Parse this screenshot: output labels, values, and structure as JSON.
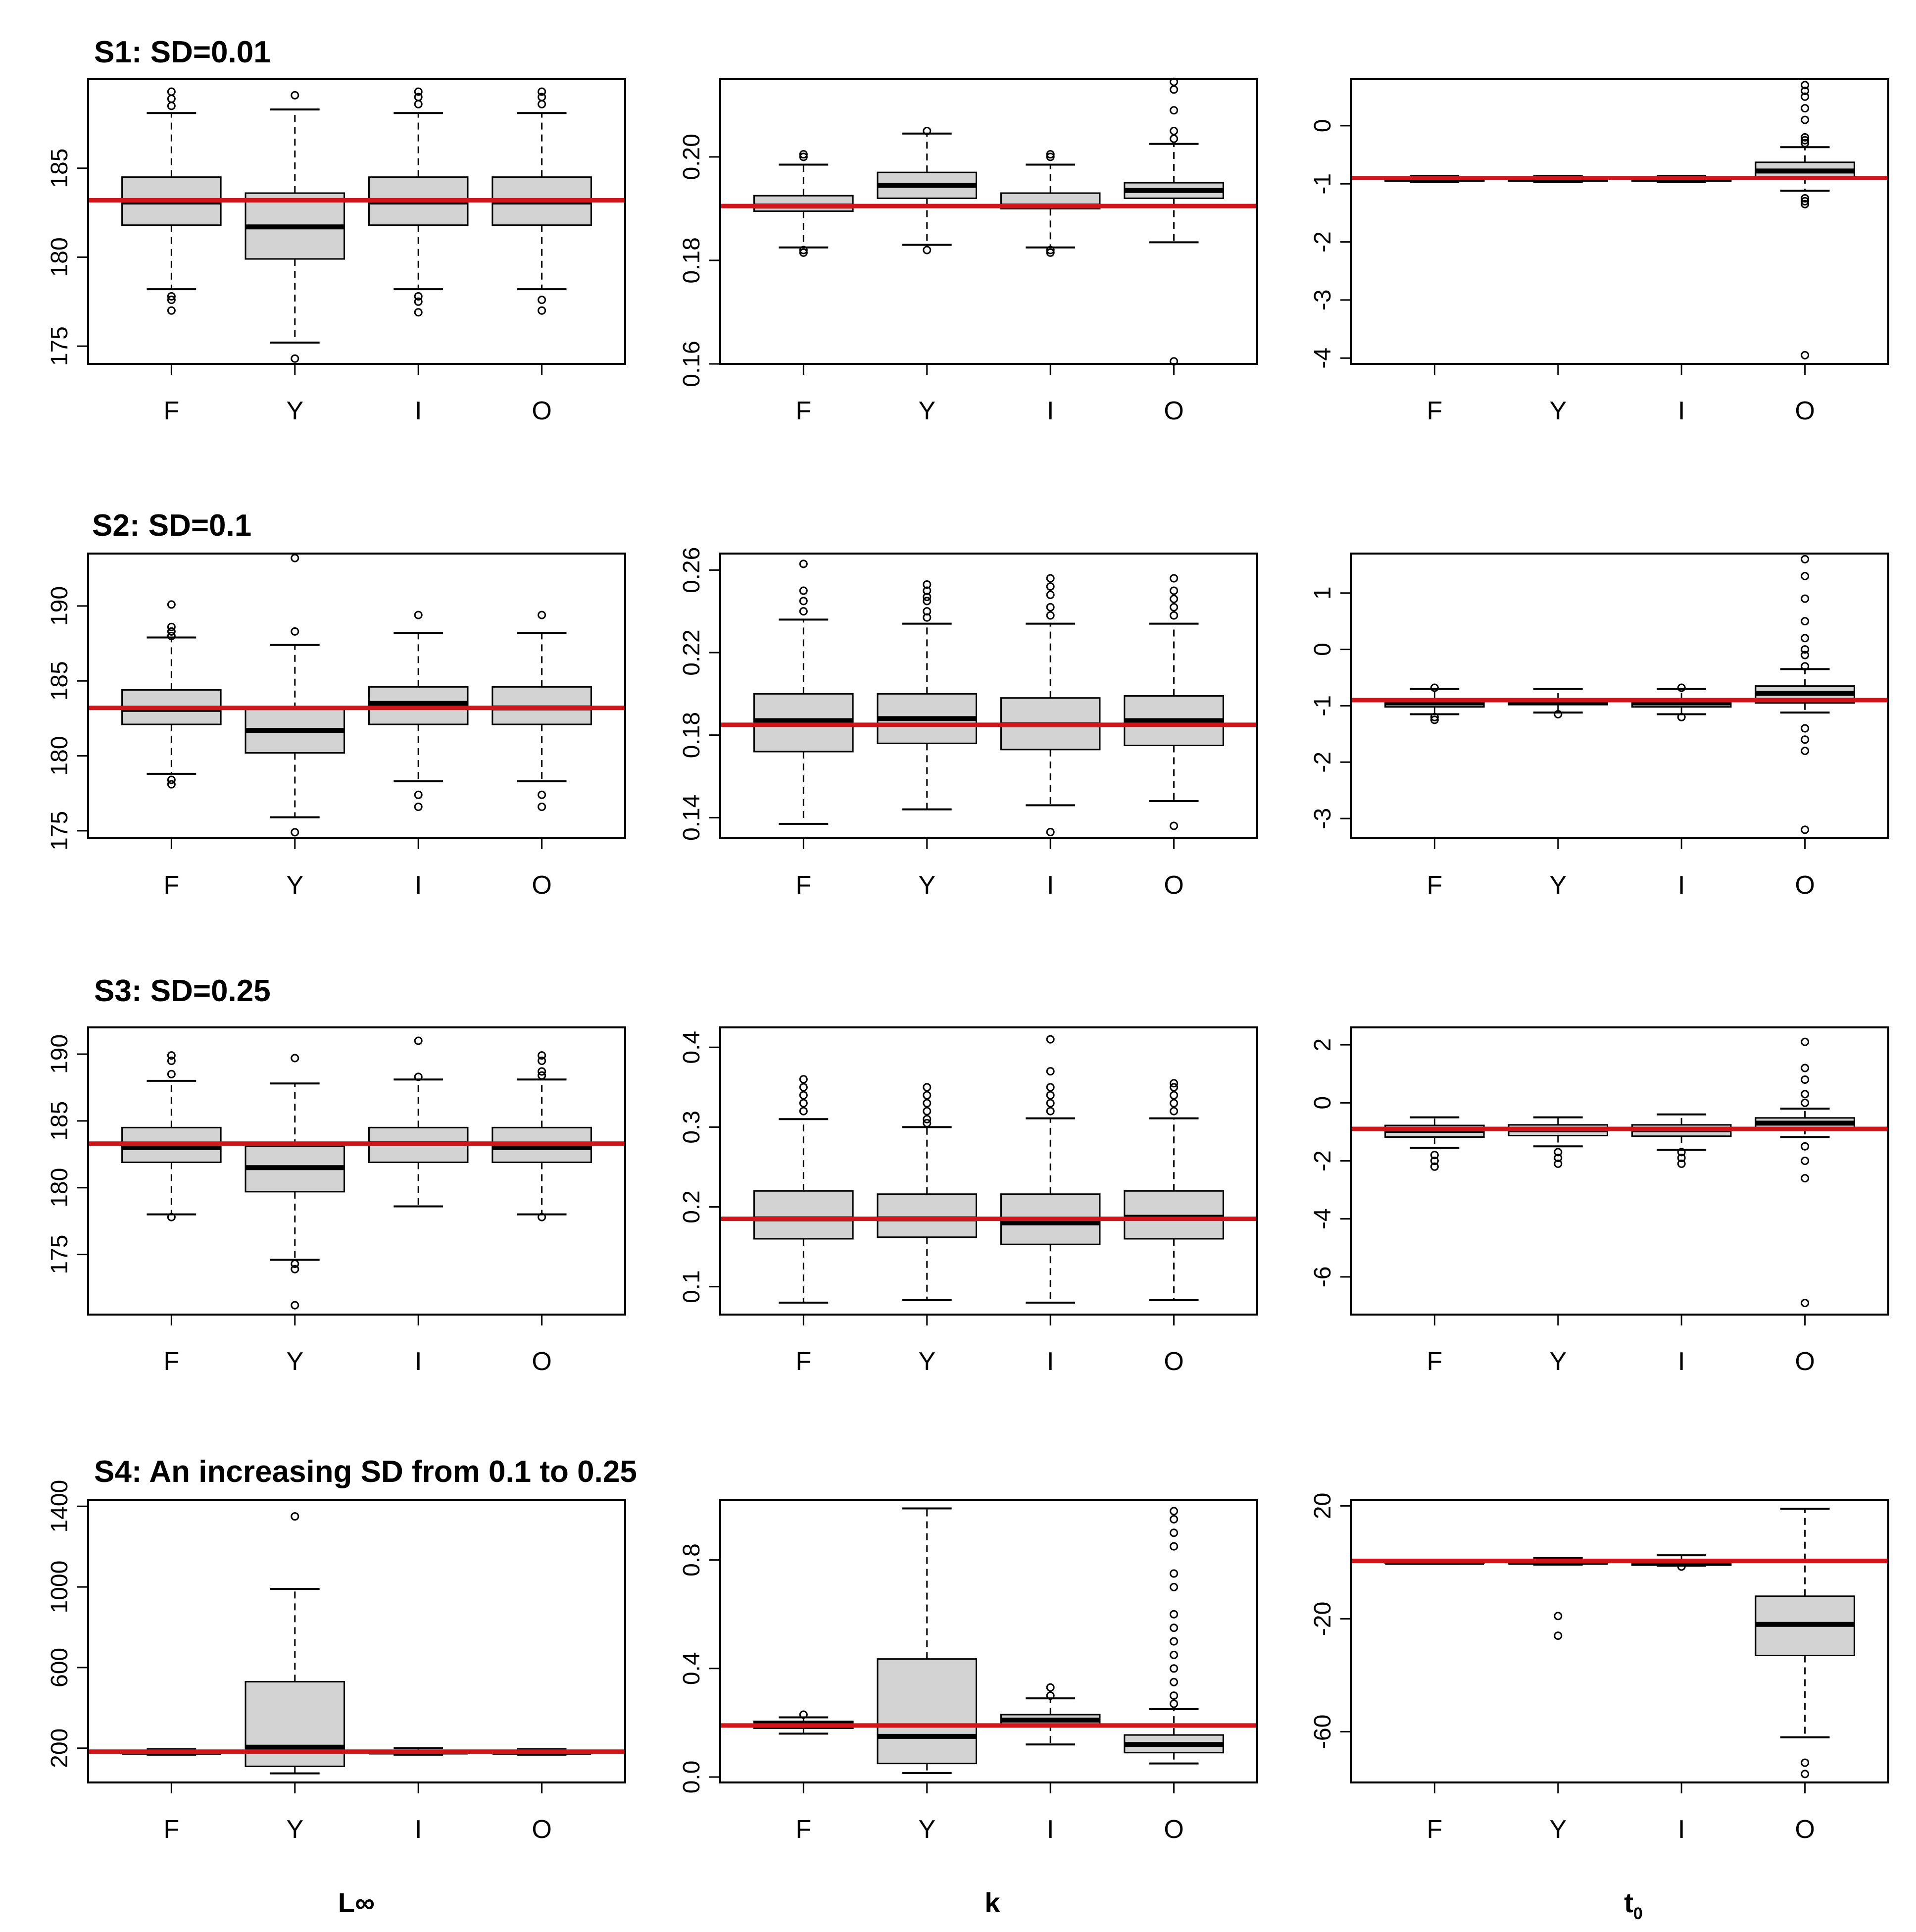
{
  "figure": {
    "x_labels": [
      "L∞",
      "k",
      "t0"
    ],
    "x_label_parts": [
      {
        "main": "L∞",
        "sub": ""
      },
      {
        "main": "k",
        "sub": ""
      },
      {
        "main": "t",
        "sub": "0"
      }
    ],
    "reference_line_color": "#d0161b",
    "box_fill": "#d3d3d3"
  },
  "chart_data": [
    {
      "type": "boxplot",
      "scenario": "S1",
      "title": "S1: SD=0.01",
      "parameter": "L∞",
      "categories": [
        "F",
        "Y",
        "I",
        "O"
      ],
      "ylim": [
        174,
        190
      ],
      "yticks": [
        175,
        180,
        185
      ],
      "reference_value": 183.2,
      "boxes": [
        {
          "q1": 181.8,
          "median": 183.1,
          "q3": 184.5,
          "lower": 178.2,
          "upper": 188.1,
          "outliers": [
            177.0,
            177.6,
            177.8,
            188.5,
            188.9,
            189.3
          ]
        },
        {
          "q1": 179.9,
          "median": 181.7,
          "q3": 183.6,
          "lower": 175.2,
          "upper": 188.3,
          "outliers": [
            174.3,
            189.1
          ]
        },
        {
          "q1": 181.8,
          "median": 183.1,
          "q3": 184.5,
          "lower": 178.2,
          "upper": 188.1,
          "outliers": [
            176.9,
            177.5,
            177.8,
            188.6,
            189.0,
            189.3
          ]
        },
        {
          "q1": 181.8,
          "median": 183.1,
          "q3": 184.5,
          "lower": 178.2,
          "upper": 188.1,
          "outliers": [
            177.0,
            177.6,
            188.6,
            189.0,
            189.3
          ]
        }
      ]
    },
    {
      "type": "boxplot",
      "scenario": "S1",
      "title": "",
      "parameter": "k",
      "categories": [
        "F",
        "Y",
        "I",
        "O"
      ],
      "ylim": [
        0.16,
        0.215
      ],
      "yticks": [
        0.16,
        0.18,
        0.2
      ],
      "reference_value": 0.1905,
      "boxes": [
        {
          "q1": 0.1895,
          "median": 0.1905,
          "q3": 0.1925,
          "lower": 0.1825,
          "upper": 0.1985,
          "outliers": [
            0.1815,
            0.182,
            0.2,
            0.2005
          ]
        },
        {
          "q1": 0.192,
          "median": 0.1945,
          "q3": 0.197,
          "lower": 0.183,
          "upper": 0.2045,
          "outliers": [
            0.182,
            0.205
          ]
        },
        {
          "q1": 0.19,
          "median": 0.1905,
          "q3": 0.193,
          "lower": 0.1825,
          "upper": 0.1985,
          "outliers": [
            0.1815,
            0.182,
            0.2,
            0.2005
          ]
        },
        {
          "q1": 0.192,
          "median": 0.1935,
          "q3": 0.195,
          "lower": 0.1835,
          "upper": 0.2025,
          "outliers": [
            0.1605,
            0.2035,
            0.205,
            0.209,
            0.213,
            0.2145
          ]
        }
      ]
    },
    {
      "type": "boxplot",
      "scenario": "S1",
      "title": "",
      "parameter": "t0",
      "categories": [
        "F",
        "Y",
        "I",
        "O"
      ],
      "ylim": [
        -4.1,
        0.8
      ],
      "yticks": [
        -4,
        -3,
        -2,
        -1,
        0
      ],
      "reference_value": -0.9,
      "boxes": [
        {
          "q1": -0.95,
          "median": -0.92,
          "q3": -0.89,
          "lower": -0.97,
          "upper": -0.87,
          "outliers": []
        },
        {
          "q1": -0.95,
          "median": -0.92,
          "q3": -0.89,
          "lower": -0.97,
          "upper": -0.87,
          "outliers": []
        },
        {
          "q1": -0.95,
          "median": -0.92,
          "q3": -0.89,
          "lower": -0.97,
          "upper": -0.87,
          "outliers": []
        },
        {
          "q1": -0.88,
          "median": -0.78,
          "q3": -0.63,
          "lower": -1.12,
          "upper": -0.37,
          "outliers": [
            -3.95,
            -1.35,
            -1.3,
            -1.25,
            -0.3,
            -0.25,
            -0.2,
            0.1,
            0.3,
            0.5,
            0.6,
            0.7
          ]
        }
      ]
    },
    {
      "type": "boxplot",
      "scenario": "S2",
      "title": "S2: SD=0.1",
      "parameter": "L∞",
      "categories": [
        "F",
        "Y",
        "I",
        "O"
      ],
      "ylim": [
        174.5,
        193.5
      ],
      "yticks": [
        175,
        180,
        185,
        190
      ],
      "reference_value": 183.2,
      "boxes": [
        {
          "q1": 182.1,
          "median": 183.1,
          "q3": 184.4,
          "lower": 178.8,
          "upper": 187.9,
          "outliers": [
            178.1,
            178.4,
            188.0,
            188.3,
            188.6,
            190.1
          ]
        },
        {
          "q1": 180.2,
          "median": 181.7,
          "q3": 183.1,
          "lower": 175.9,
          "upper": 187.4,
          "outliers": [
            174.9,
            188.3,
            193.2
          ]
        },
        {
          "q1": 182.1,
          "median": 183.5,
          "q3": 184.6,
          "lower": 178.3,
          "upper": 188.2,
          "outliers": [
            176.6,
            177.4,
            189.4
          ]
        },
        {
          "q1": 182.1,
          "median": 183.2,
          "q3": 184.6,
          "lower": 178.3,
          "upper": 188.2,
          "outliers": [
            176.6,
            177.4,
            189.4
          ]
        }
      ]
    },
    {
      "type": "boxplot",
      "scenario": "S2",
      "title": "",
      "parameter": "k",
      "categories": [
        "F",
        "Y",
        "I",
        "O"
      ],
      "ylim": [
        0.13,
        0.268
      ],
      "yticks": [
        0.14,
        0.18,
        0.22,
        0.26
      ],
      "reference_value": 0.185,
      "boxes": [
        {
          "q1": 0.172,
          "median": 0.187,
          "q3": 0.2,
          "lower": 0.137,
          "upper": 0.236,
          "outliers": [
            0.24,
            0.245,
            0.25,
            0.263
          ]
        },
        {
          "q1": 0.176,
          "median": 0.188,
          "q3": 0.2,
          "lower": 0.144,
          "upper": 0.234,
          "outliers": [
            0.237,
            0.24,
            0.245,
            0.247,
            0.25,
            0.253
          ]
        },
        {
          "q1": 0.173,
          "median": 0.185,
          "q3": 0.198,
          "lower": 0.146,
          "upper": 0.234,
          "outliers": [
            0.133,
            0.238,
            0.242,
            0.248,
            0.252,
            0.256
          ]
        },
        {
          "q1": 0.175,
          "median": 0.187,
          "q3": 0.199,
          "lower": 0.148,
          "upper": 0.234,
          "outliers": [
            0.136,
            0.238,
            0.242,
            0.246,
            0.25,
            0.256
          ]
        }
      ]
    },
    {
      "type": "boxplot",
      "scenario": "S2",
      "title": "",
      "parameter": "t0",
      "categories": [
        "F",
        "Y",
        "I",
        "O"
      ],
      "ylim": [
        -3.35,
        1.7
      ],
      "yticks": [
        -3,
        -2,
        -1,
        0,
        1
      ],
      "reference_value": -0.9,
      "boxes": [
        {
          "q1": -1.02,
          "median": -0.95,
          "q3": -0.88,
          "lower": -1.15,
          "upper": -0.7,
          "outliers": [
            -1.2,
            -1.25,
            -0.68
          ]
        },
        {
          "q1": -0.98,
          "median": -0.94,
          "q3": -0.9,
          "lower": -1.12,
          "upper": -0.7,
          "outliers": [
            -1.15
          ]
        },
        {
          "q1": -1.02,
          "median": -0.95,
          "q3": -0.89,
          "lower": -1.15,
          "upper": -0.7,
          "outliers": [
            -1.2,
            -0.68
          ]
        },
        {
          "q1": -0.95,
          "median": -0.78,
          "q3": -0.65,
          "lower": -1.12,
          "upper": -0.35,
          "outliers": [
            -3.2,
            -1.8,
            -1.6,
            -1.4,
            -0.3,
            -0.1,
            0.0,
            0.2,
            0.5,
            0.9,
            1.3,
            1.6
          ]
        }
      ]
    },
    {
      "type": "boxplot",
      "scenario": "S3",
      "title": "S3: SD=0.25",
      "parameter": "L∞",
      "categories": [
        "F",
        "Y",
        "I",
        "O"
      ],
      "ylim": [
        170.5,
        192
      ],
      "yticks": [
        175,
        180,
        185,
        190
      ],
      "reference_value": 183.3,
      "boxes": [
        {
          "q1": 181.9,
          "median": 183.0,
          "q3": 184.5,
          "lower": 178.0,
          "upper": 188.0,
          "outliers": [
            177.8,
            188.5,
            189.5,
            189.9
          ]
        },
        {
          "q1": 179.7,
          "median": 181.5,
          "q3": 183.1,
          "lower": 174.6,
          "upper": 187.8,
          "outliers": [
            171.2,
            173.9,
            174.3,
            189.7
          ]
        },
        {
          "q1": 181.9,
          "median": 183.3,
          "q3": 184.5,
          "lower": 178.6,
          "upper": 188.1,
          "outliers": [
            188.3,
            191.0
          ]
        },
        {
          "q1": 181.9,
          "median": 183.0,
          "q3": 184.5,
          "lower": 178.0,
          "upper": 188.1,
          "outliers": [
            177.8,
            188.4,
            188.7,
            189.5,
            189.9
          ]
        }
      ]
    },
    {
      "type": "boxplot",
      "scenario": "S3",
      "title": "",
      "parameter": "k",
      "categories": [
        "F",
        "Y",
        "I",
        "O"
      ],
      "ylim": [
        0.065,
        0.425
      ],
      "yticks": [
        0.1,
        0.2,
        0.3,
        0.4
      ],
      "reference_value": 0.185,
      "boxes": [
        {
          "q1": 0.16,
          "median": 0.185,
          "q3": 0.22,
          "lower": 0.08,
          "upper": 0.31,
          "outliers": [
            0.32,
            0.33,
            0.34,
            0.35,
            0.36
          ]
        },
        {
          "q1": 0.162,
          "median": 0.185,
          "q3": 0.216,
          "lower": 0.083,
          "upper": 0.3,
          "outliers": [
            0.305,
            0.31,
            0.32,
            0.33,
            0.34,
            0.35
          ]
        },
        {
          "q1": 0.153,
          "median": 0.18,
          "q3": 0.216,
          "lower": 0.08,
          "upper": 0.311,
          "outliers": [
            0.32,
            0.33,
            0.34,
            0.35,
            0.37,
            0.41
          ]
        },
        {
          "q1": 0.16,
          "median": 0.187,
          "q3": 0.22,
          "lower": 0.083,
          "upper": 0.311,
          "outliers": [
            0.32,
            0.33,
            0.34,
            0.35,
            0.355
          ]
        }
      ]
    },
    {
      "type": "boxplot",
      "scenario": "S3",
      "title": "",
      "parameter": "t0",
      "categories": [
        "F",
        "Y",
        "I",
        "O"
      ],
      "ylim": [
        -7.3,
        2.6
      ],
      "yticks": [
        -6,
        -4,
        -2,
        0,
        2
      ],
      "reference_value": -0.9,
      "boxes": [
        {
          "q1": -1.18,
          "median": -0.95,
          "q3": -0.78,
          "lower": -1.55,
          "upper": -0.5,
          "outliers": [
            -2.2,
            -2.0,
            -1.8
          ]
        },
        {
          "q1": -1.13,
          "median": -0.93,
          "q3": -0.76,
          "lower": -1.5,
          "upper": -0.5,
          "outliers": [
            -2.1,
            -1.9,
            -1.7
          ]
        },
        {
          "q1": -1.15,
          "median": -0.93,
          "q3": -0.76,
          "lower": -1.62,
          "upper": -0.4,
          "outliers": [
            -2.1,
            -1.9,
            -1.7
          ]
        },
        {
          "q1": -0.85,
          "median": -0.7,
          "q3": -0.52,
          "lower": -1.18,
          "upper": -0.2,
          "outliers": [
            -6.9,
            -2.6,
            -2.0,
            -1.5,
            0.0,
            0.3,
            0.8,
            1.2,
            2.1
          ]
        }
      ]
    },
    {
      "type": "boxplot",
      "scenario": "S4",
      "title": "S4: An increasing SD from 0.1 to 0.25",
      "parameter": "L∞",
      "categories": [
        "F",
        "Y",
        "I",
        "O"
      ],
      "ylim": [
        30,
        1430
      ],
      "yticks": [
        200,
        600,
        1000,
        1400
      ],
      "reference_value": 183,
      "boxes": [
        {
          "q1": 174,
          "median": 180,
          "q3": 187,
          "lower": 168,
          "upper": 195,
          "outliers": []
        },
        {
          "q1": 110,
          "median": 205,
          "q3": 530,
          "lower": 75,
          "upper": 990,
          "outliers": [
            1350
          ]
        },
        {
          "q1": 174,
          "median": 181,
          "q3": 188,
          "lower": 168,
          "upper": 200,
          "outliers": []
        },
        {
          "q1": 174,
          "median": 180,
          "q3": 187,
          "lower": 168,
          "upper": 195,
          "outliers": []
        }
      ]
    },
    {
      "type": "boxplot",
      "scenario": "S4",
      "title": "",
      "parameter": "k",
      "categories": [
        "F",
        "Y",
        "I",
        "O"
      ],
      "ylim": [
        -0.02,
        1.02
      ],
      "yticks": [
        0.0,
        0.4,
        0.8
      ],
      "reference_value": 0.19,
      "boxes": [
        {
          "q1": 0.18,
          "median": 0.195,
          "q3": 0.205,
          "lower": 0.16,
          "upper": 0.22,
          "outliers": [
            0.23
          ]
        },
        {
          "q1": 0.05,
          "median": 0.15,
          "q3": 0.435,
          "lower": 0.015,
          "upper": 0.99,
          "outliers": []
        },
        {
          "q1": 0.195,
          "median": 0.21,
          "q3": 0.23,
          "lower": 0.12,
          "upper": 0.29,
          "outliers": [
            0.3,
            0.33
          ]
        },
        {
          "q1": 0.09,
          "median": 0.12,
          "q3": 0.155,
          "lower": 0.05,
          "upper": 0.25,
          "outliers": [
            0.27,
            0.3,
            0.35,
            0.4,
            0.45,
            0.5,
            0.55,
            0.6,
            0.7,
            0.75,
            0.85,
            0.9,
            0.95,
            0.98
          ]
        }
      ]
    },
    {
      "type": "boxplot",
      "scenario": "S4",
      "title": "",
      "parameter": "t0",
      "categories": [
        "F",
        "Y",
        "I",
        "O"
      ],
      "ylim": [
        -78,
        22
      ],
      "yticks": [
        -60,
        -20,
        20
      ],
      "reference_value": 0.5,
      "boxes": [
        {
          "q1": -0.3,
          "median": 0.0,
          "q3": 0.3,
          "lower": -0.5,
          "upper": 0.4,
          "outliers": []
        },
        {
          "q1": -0.5,
          "median": 0.0,
          "q3": 0.5,
          "lower": -0.8,
          "upper": 1.5,
          "outliers": [
            -19,
            -26
          ]
        },
        {
          "q1": -1.0,
          "median": -0.3,
          "q3": 0.5,
          "lower": -1.2,
          "upper": 2.5,
          "outliers": [
            -1.5
          ]
        },
        {
          "q1": -33,
          "median": -22,
          "q3": -12,
          "lower": -62,
          "upper": 19,
          "outliers": [
            -71,
            -75
          ]
        }
      ]
    }
  ]
}
